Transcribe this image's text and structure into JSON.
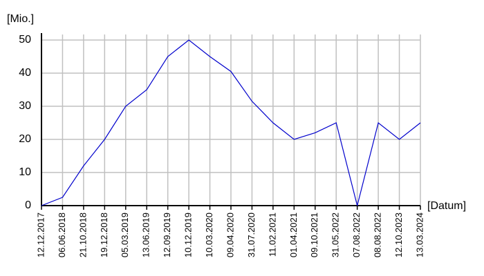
{
  "chart_data": {
    "type": "line",
    "ylabel": "[Mio.]",
    "xlabel": "[Datum]",
    "categories": [
      "12.12.2017",
      "06.06.2018",
      "21.10.2018",
      "19.12.2018",
      "05.03.2019",
      "13.06.2019",
      "12.09.2019",
      "10.12.2019",
      "10.03.2020",
      "09.04.2020",
      "31.07.2020",
      "11.02.2021",
      "01.04.2021",
      "09.10.2021",
      "31.05.2022",
      "07.08.2022",
      "08.08.2022",
      "12.10.2023",
      "13.03.2024"
    ],
    "values": [
      0,
      2.5,
      12,
      20,
      30,
      35,
      45,
      50,
      45,
      40.5,
      31.5,
      25,
      20,
      22,
      25,
      0,
      25,
      20,
      25
    ],
    "color": "#0000cc",
    "ylim": [
      0,
      50
    ],
    "yticks": [
      0,
      10,
      20,
      30,
      40,
      50
    ],
    "grid": true
  }
}
